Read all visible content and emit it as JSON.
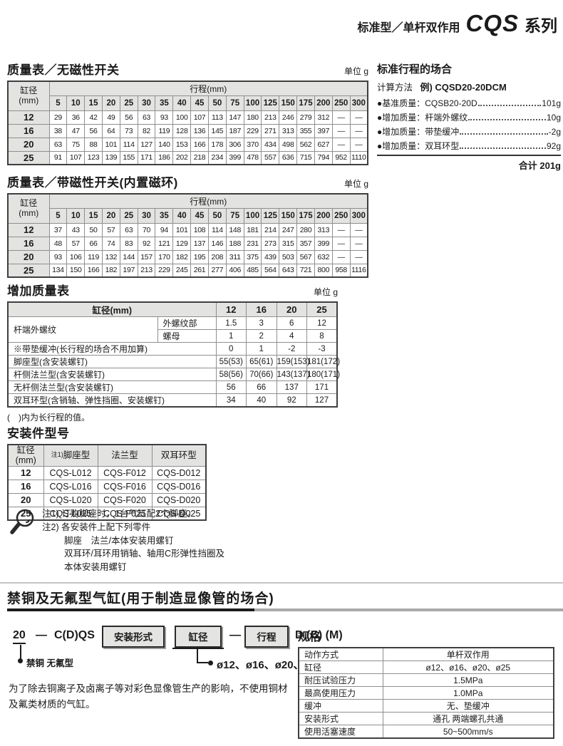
{
  "header": {
    "subtitle": "标准型／单杆双作用",
    "series": "CQS",
    "suffix": "系列"
  },
  "mass_table_no_switch": {
    "title": "质量表／无磁性开关",
    "unit": "单位 g",
    "bore_label": "缸径",
    "bore_unit": "(mm)",
    "stroke_label": "行程(mm)",
    "strokes": [
      "5",
      "10",
      "15",
      "20",
      "25",
      "30",
      "35",
      "40",
      "45",
      "50",
      "75",
      "100",
      "125",
      "150",
      "175",
      "200",
      "250",
      "300"
    ],
    "rows": [
      {
        "bore": "12",
        "values": [
          "29",
          "36",
          "42",
          "49",
          "56",
          "63",
          "93",
          "100",
          "107",
          "113",
          "147",
          "180",
          "213",
          "246",
          "279",
          "312",
          "—",
          "—"
        ]
      },
      {
        "bore": "16",
        "values": [
          "38",
          "47",
          "56",
          "64",
          "73",
          "82",
          "119",
          "128",
          "136",
          "145",
          "187",
          "229",
          "271",
          "313",
          "355",
          "397",
          "—",
          "—"
        ]
      },
      {
        "bore": "20",
        "values": [
          "63",
          "75",
          "88",
          "101",
          "114",
          "127",
          "140",
          "153",
          "166",
          "178",
          "306",
          "370",
          "434",
          "498",
          "562",
          "627",
          "—",
          "—"
        ]
      },
      {
        "bore": "25",
        "values": [
          "91",
          "107",
          "123",
          "139",
          "155",
          "171",
          "186",
          "202",
          "218",
          "234",
          "399",
          "478",
          "557",
          "636",
          "715",
          "794",
          "952",
          "1110"
        ]
      }
    ]
  },
  "standard_stroke_calc": {
    "title": "标准行程的场合",
    "method_label": "计算方法",
    "example": "例) CQSD20-20DCM",
    "items": [
      {
        "label": "●基准质量：CQSB20-20D",
        "value": "101g"
      },
      {
        "label": "●增加质量：杆端外螺纹",
        "value": "10g"
      },
      {
        "label": "●增加质量：带垫缓冲",
        "value": "-2g"
      },
      {
        "label": "●增加质量：双耳环型",
        "value": "92g"
      }
    ],
    "total_label": "合计",
    "total_value": "201g"
  },
  "mass_table_with_switch": {
    "title": "质量表／带磁性开关(内置磁环)",
    "unit": "单位 g",
    "bore_label": "缸径",
    "bore_unit": "(mm)",
    "stroke_label": "行程(mm)",
    "strokes": [
      "5",
      "10",
      "15",
      "20",
      "25",
      "30",
      "35",
      "40",
      "45",
      "50",
      "75",
      "100",
      "125",
      "150",
      "175",
      "200",
      "250",
      "300"
    ],
    "rows": [
      {
        "bore": "12",
        "values": [
          "37",
          "43",
          "50",
          "57",
          "63",
          "70",
          "94",
          "101",
          "108",
          "114",
          "148",
          "181",
          "214",
          "247",
          "280",
          "313",
          "—",
          "—"
        ]
      },
      {
        "bore": "16",
        "values": [
          "48",
          "57",
          "66",
          "74",
          "83",
          "92",
          "121",
          "129",
          "137",
          "146",
          "188",
          "231",
          "273",
          "315",
          "357",
          "399",
          "—",
          "—"
        ]
      },
      {
        "bore": "20",
        "values": [
          "93",
          "106",
          "119",
          "132",
          "144",
          "157",
          "170",
          "182",
          "195",
          "208",
          "311",
          "375",
          "439",
          "503",
          "567",
          "632",
          "—",
          "—"
        ]
      },
      {
        "bore": "25",
        "values": [
          "134",
          "150",
          "166",
          "182",
          "197",
          "213",
          "229",
          "245",
          "261",
          "277",
          "406",
          "485",
          "564",
          "643",
          "721",
          "800",
          "958",
          "1116"
        ]
      }
    ]
  },
  "additional_mass_table": {
    "title": "增加质量表",
    "unit": "单位 g",
    "bore_header": "缸径(mm)",
    "bores": [
      "12",
      "16",
      "20",
      "25"
    ],
    "thread_label": "杆端外螺纹",
    "thread_rows": [
      {
        "label": "外螺纹部",
        "values": [
          "1.5",
          "3",
          "6",
          "12"
        ]
      },
      {
        "label": "螺母",
        "values": [
          "1",
          "2",
          "4",
          "8"
        ]
      }
    ],
    "rows": [
      {
        "label": "※带垫缓冲(长行程的场合不用加算)",
        "values": [
          "0",
          "1",
          "-2",
          "-3"
        ]
      },
      {
        "label": "脚座型(含安装螺钉)",
        "values": [
          "55(53)",
          "65(61)",
          "159(153)",
          "181(172)"
        ]
      },
      {
        "label": "杆侧法兰型(含安装螺钉)",
        "values": [
          "58(56)",
          "70(66)",
          "143(137)",
          "180(171)"
        ]
      },
      {
        "label": "无杆侧法兰型(含安装螺钉)",
        "values": [
          "56",
          "66",
          "137",
          "171"
        ]
      },
      {
        "label": "双耳环型(含销轴、弹性挡圈、安装螺钉)",
        "values": [
          "34",
          "40",
          "92",
          "127"
        ]
      }
    ],
    "footnote": "(　)内为长行程的值。"
  },
  "mounting_table": {
    "title": "安装件型号",
    "headers": {
      "bore": "缸径",
      "bore_unit": "(mm)",
      "foot_sup": "注1)",
      "foot": "脚座型",
      "flange": "法兰型",
      "clevis": "双耳环型"
    },
    "rows": [
      {
        "bore": "12",
        "foot": "CQS-L012",
        "flange": "CQS-F012",
        "clevis": "CQS-D012"
      },
      {
        "bore": "16",
        "foot": "CQS-L016",
        "flange": "CQS-F016",
        "clevis": "CQS-D016"
      },
      {
        "bore": "20",
        "foot": "CQS-L020",
        "flange": "CQS-F020",
        "clevis": "CQS-D020"
      },
      {
        "bore": "25",
        "foot": "CQS-L025",
        "flange": "CQS-F025",
        "clevis": "CQS-D025"
      }
    ]
  },
  "notes": {
    "line1": "注1) 订购脚座时，1台气缸配2个脚座。",
    "line2": "注2) 各安装件上配下列零件",
    "line3": "脚座　法兰/本体安装用螺钉",
    "line4": "双耳环/耳环用销轴、轴用C形弹性挡圈及",
    "line5": "本体安装用螺钉"
  },
  "copper_free_section": {
    "title": "禁铜及无氟型气缸(用于制造显像管的场合)",
    "model_code": {
      "prefix": "20",
      "dash1": "—",
      "body": "C(D)QS",
      "mount_box": "安装形式",
      "bore_box": "缸径",
      "dash2": "—",
      "stroke_box": "行程",
      "suffix": "D (C) (M)",
      "prefix_note": "禁铜  无氟型",
      "bore_options": "ø12、ø16、ø20、ø25"
    },
    "description": "为了除去铜离子及卤离子等对彩色显像管生产的影响，不使用铜材及氟类材质的气缸。",
    "spec_table": {
      "title": "规格",
      "rows": [
        {
          "label": "动作方式",
          "value": "单杆双作用"
        },
        {
          "label": "缸径",
          "value": "ø12、ø16、ø20、ø25"
        },
        {
          "label": "耐压试验压力",
          "value": "1.5MPa"
        },
        {
          "label": "最高使用压力",
          "value": "1.0MPa"
        },
        {
          "label": "缓冲",
          "value": "无、垫缓冲"
        },
        {
          "label": "安装形式",
          "value": "通孔 两端螺孔共通"
        },
        {
          "label": "使用活塞速度",
          "value": "50~500mm/s"
        }
      ]
    }
  },
  "colors": {
    "header_bg": "#e3e3e1",
    "border_inner": "#8f8f8f",
    "border_outer": "#3f3f3f",
    "rule_black": "#1c1c1c",
    "rule_gray": "#a9a9a9"
  }
}
